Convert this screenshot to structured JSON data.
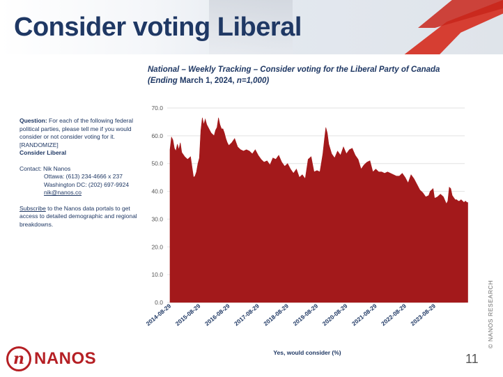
{
  "page": {
    "title": "Consider voting Liberal",
    "page_number": "11",
    "copyright": "© NANOS RESEARCH",
    "logo_letter": "n",
    "logo_text": "NANOS"
  },
  "chart_title": {
    "line1": "National – Weekly Tracking – Consider voting for the Liberal Party of Canada",
    "line2_start": "(Ending ",
    "line2_date": "March 1, 2024, ",
    "line2_end": "n=1,000)"
  },
  "side": {
    "question_label": "Question:",
    "question_text": " For each of the following federal political parties, please tell me if you would consider or not consider voting for it. [RANDOMIZE]",
    "question_bold": "Consider Liberal",
    "contact_label": "Contact: Nik Nanos",
    "contact_ottawa": "Ottawa: (613) 234-4666 x 237",
    "contact_washington": "Washington DC: (202) 697-9924",
    "contact_email": "nik@nanos.co",
    "subscribe_link": "Subscribe",
    "subscribe_text": " to the Nanos data portals to get access to detailed demographic and regional breakdowns."
  },
  "colors": {
    "series": "#a3191b",
    "title": "#1f3864",
    "brand": "#b51f24"
  },
  "chart_data": {
    "type": "area",
    "title": "National – Weekly Tracking – Consider voting for the Liberal Party of Canada (Ending March 1, 2024, n=1,000)",
    "xlabel": "Yes, would consider (%)",
    "ylabel": "",
    "ylim": [
      0,
      70
    ],
    "yticks": [
      "0.0",
      "10.0",
      "20.0",
      "30.0",
      "40.0",
      "50.0",
      "60.0",
      "70.0"
    ],
    "xticks": [
      "2014-08-29",
      "2015-08-29",
      "2016-08-29",
      "2017-08-29",
      "2018-08-29",
      "2019-08-29",
      "2020-08-29",
      "2021-08-29",
      "2022-08-29",
      "2023-08-29"
    ],
    "x_start": "2014-08-29",
    "x_end": "2024-03-01",
    "series": [
      {
        "name": "Yes, would consider (%)",
        "points": [
          [
            0.0,
            55.0
          ],
          [
            0.05,
            59.5
          ],
          [
            0.1,
            58.5
          ],
          [
            0.15,
            55.5
          ],
          [
            0.2,
            54.5
          ],
          [
            0.25,
            57.0
          ],
          [
            0.3,
            55.0
          ],
          [
            0.35,
            57.5
          ],
          [
            0.4,
            54.0
          ],
          [
            0.5,
            52.5
          ],
          [
            0.6,
            51.5
          ],
          [
            0.7,
            52.5
          ],
          [
            0.8,
            45.0
          ],
          [
            0.85,
            45.5
          ],
          [
            0.9,
            47.0
          ],
          [
            0.95,
            50.0
          ],
          [
            1.0,
            52.0
          ],
          [
            1.05,
            62.0
          ],
          [
            1.1,
            66.5
          ],
          [
            1.15,
            64.0
          ],
          [
            1.2,
            66.0
          ],
          [
            1.25,
            64.0
          ],
          [
            1.3,
            63.0
          ],
          [
            1.35,
            62.0
          ],
          [
            1.4,
            61.0
          ],
          [
            1.45,
            60.5
          ],
          [
            1.5,
            60.0
          ],
          [
            1.55,
            62.0
          ],
          [
            1.6,
            63.0
          ],
          [
            1.65,
            66.5
          ],
          [
            1.7,
            64.0
          ],
          [
            1.75,
            62.5
          ],
          [
            1.8,
            62.5
          ],
          [
            1.85,
            61.0
          ],
          [
            1.9,
            59.0
          ],
          [
            1.95,
            57.5
          ],
          [
            2.0,
            56.5
          ],
          [
            2.1,
            57.5
          ],
          [
            2.2,
            59.0
          ],
          [
            2.3,
            56.0
          ],
          [
            2.4,
            55.0
          ],
          [
            2.5,
            54.5
          ],
          [
            2.6,
            55.0
          ],
          [
            2.7,
            54.5
          ],
          [
            2.8,
            53.5
          ],
          [
            2.9,
            55.0
          ],
          [
            3.0,
            53.0
          ],
          [
            3.1,
            51.5
          ],
          [
            3.2,
            50.5
          ],
          [
            3.3,
            51.0
          ],
          [
            3.4,
            49.5
          ],
          [
            3.5,
            52.0
          ],
          [
            3.6,
            51.5
          ],
          [
            3.7,
            53.0
          ],
          [
            3.8,
            50.5
          ],
          [
            3.9,
            49.0
          ],
          [
            4.0,
            50.0
          ],
          [
            4.1,
            48.0
          ],
          [
            4.2,
            46.5
          ],
          [
            4.3,
            48.0
          ],
          [
            4.4,
            45.0
          ],
          [
            4.5,
            46.0
          ],
          [
            4.6,
            44.5
          ],
          [
            4.7,
            51.5
          ],
          [
            4.8,
            52.5
          ],
          [
            4.9,
            47.0
          ],
          [
            5.0,
            47.5
          ],
          [
            5.1,
            47.0
          ],
          [
            5.2,
            53.5
          ],
          [
            5.25,
            58.5
          ],
          [
            5.3,
            63.0
          ],
          [
            5.35,
            61.0
          ],
          [
            5.4,
            57.0
          ],
          [
            5.5,
            53.5
          ],
          [
            5.6,
            52.0
          ],
          [
            5.7,
            54.5
          ],
          [
            5.8,
            53.0
          ],
          [
            5.9,
            56.0
          ],
          [
            6.0,
            53.5
          ],
          [
            6.1,
            55.0
          ],
          [
            6.2,
            55.5
          ],
          [
            6.3,
            53.0
          ],
          [
            6.4,
            51.5
          ],
          [
            6.5,
            48.0
          ],
          [
            6.6,
            49.5
          ],
          [
            6.7,
            50.5
          ],
          [
            6.8,
            51.0
          ],
          [
            6.9,
            47.0
          ],
          [
            7.0,
            48.0
          ],
          [
            7.1,
            47.0
          ],
          [
            7.2,
            47.0
          ],
          [
            7.3,
            46.5
          ],
          [
            7.4,
            47.0
          ],
          [
            7.5,
            46.5
          ],
          [
            7.6,
            46.0
          ],
          [
            7.7,
            45.5
          ],
          [
            7.8,
            45.5
          ],
          [
            7.9,
            46.5
          ],
          [
            8.0,
            45.0
          ],
          [
            8.1,
            43.0
          ],
          [
            8.2,
            46.0
          ],
          [
            8.3,
            44.5
          ],
          [
            8.4,
            42.5
          ],
          [
            8.5,
            40.5
          ],
          [
            8.6,
            39.5
          ],
          [
            8.7,
            38.0
          ],
          [
            8.8,
            38.5
          ],
          [
            8.85,
            40.0
          ],
          [
            8.9,
            40.5
          ],
          [
            8.95,
            41.0
          ],
          [
            9.0,
            37.5
          ],
          [
            9.1,
            38.0
          ],
          [
            9.2,
            39.0
          ],
          [
            9.3,
            38.0
          ],
          [
            9.4,
            35.5
          ],
          [
            9.45,
            36.5
          ],
          [
            9.5,
            41.5
          ],
          [
            9.55,
            41.0
          ],
          [
            9.6,
            38.5
          ],
          [
            9.7,
            37.0
          ],
          [
            9.75,
            37.0
          ],
          [
            9.8,
            36.5
          ],
          [
            9.85,
            36.5
          ],
          [
            9.9,
            37.0
          ],
          [
            9.95,
            36.5
          ],
          [
            10.0,
            36.0
          ],
          [
            10.05,
            36.5
          ],
          [
            10.1,
            36.0
          ],
          [
            10.13,
            36.0
          ]
        ]
      }
    ]
  }
}
